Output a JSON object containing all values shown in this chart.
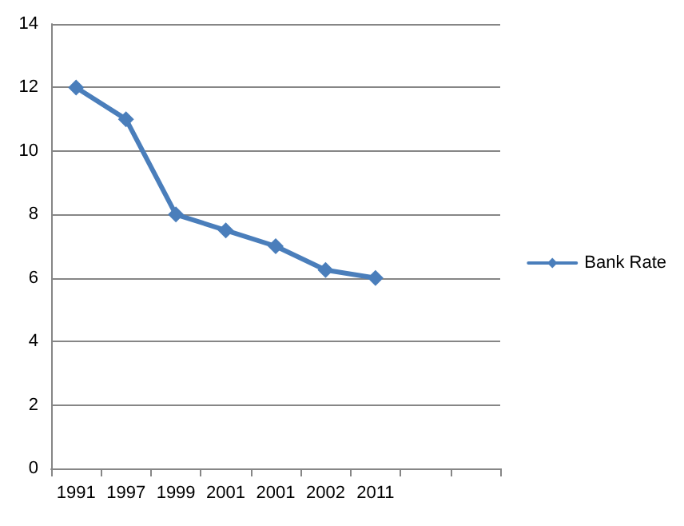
{
  "chart_data": {
    "type": "line",
    "categories": [
      "1991",
      "1997",
      "1999",
      "2001",
      "2001",
      "2002",
      "2011",
      null,
      null
    ],
    "series": [
      {
        "name": "Bank Rate",
        "color": "#4a7ebb",
        "values": [
          12,
          11,
          8,
          7.5,
          7,
          6.25,
          6,
          null,
          null
        ]
      }
    ],
    "ylim": [
      0,
      14
    ],
    "yticks": [
      0,
      2,
      4,
      6,
      8,
      10,
      12,
      14
    ],
    "grid": "y",
    "legend": "right",
    "marker": "diamond",
    "line_style": "solid"
  }
}
